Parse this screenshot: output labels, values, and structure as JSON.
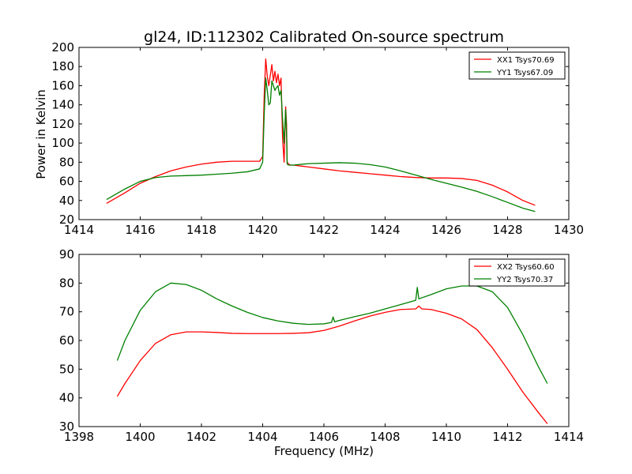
{
  "figure": {
    "title": "gl24, ID:112302 Calibrated On-source spectrum",
    "ylabel": "Power in Kelvin",
    "xlabel": "Frequency (MHz)"
  },
  "chart_data": [
    {
      "type": "line",
      "title": "gl24, ID:112302 Calibrated On-source spectrum",
      "ylabel": "Power in Kelvin",
      "xlabel": "",
      "xlim": [
        1414,
        1430
      ],
      "ylim": [
        20,
        200
      ],
      "xticks": [
        1414,
        1416,
        1418,
        1420,
        1422,
        1424,
        1426,
        1428,
        1430
      ],
      "yticks": [
        20,
        40,
        60,
        80,
        100,
        120,
        140,
        160,
        180,
        200
      ],
      "legend_position": "top-right",
      "series": [
        {
          "name": "XX1 Tsys70.69",
          "color": "#ff0000",
          "x": [
            1414.9,
            1415.5,
            1416.0,
            1416.5,
            1417.0,
            1417.5,
            1418.0,
            1418.5,
            1419.0,
            1419.5,
            1419.9,
            1420.0,
            1420.05,
            1420.1,
            1420.15,
            1420.2,
            1420.3,
            1420.35,
            1420.4,
            1420.45,
            1420.5,
            1420.55,
            1420.6,
            1420.65,
            1420.7,
            1420.75,
            1420.78,
            1420.8,
            1420.85,
            1420.9,
            1421.0,
            1421.5,
            1422.0,
            1422.5,
            1423.0,
            1423.5,
            1424.0,
            1424.5,
            1425.0,
            1425.5,
            1426.0,
            1426.5,
            1427.0,
            1427.5,
            1428.0,
            1428.5,
            1428.9
          ],
          "y": [
            37,
            48,
            58,
            65,
            71,
            75,
            78,
            80,
            81,
            81,
            81,
            86,
            150,
            188,
            170,
            160,
            182,
            165,
            175,
            163,
            172,
            160,
            168,
            105,
            80,
            138,
            120,
            80,
            78,
            77,
            77,
            75,
            73,
            71,
            69.5,
            68,
            66.5,
            65,
            64,
            63.5,
            63.5,
            63,
            61,
            56,
            49,
            40,
            35
          ]
        },
        {
          "name": "YY1 Tsys67.09",
          "color": "#008000",
          "x": [
            1414.9,
            1415.5,
            1416.0,
            1416.5,
            1417.0,
            1417.5,
            1418.0,
            1418.5,
            1419.0,
            1419.5,
            1419.9,
            1420.0,
            1420.05,
            1420.1,
            1420.15,
            1420.2,
            1420.25,
            1420.3,
            1420.35,
            1420.4,
            1420.45,
            1420.5,
            1420.55,
            1420.6,
            1420.65,
            1420.7,
            1420.75,
            1420.78,
            1420.8,
            1420.85,
            1420.9,
            1421.0,
            1421.5,
            1422.0,
            1422.5,
            1423.0,
            1423.5,
            1424.0,
            1424.5,
            1425.0,
            1425.5,
            1426.0,
            1426.5,
            1427.0,
            1427.5,
            1428.0,
            1428.5,
            1428.9
          ],
          "y": [
            41,
            52,
            60,
            64,
            65.5,
            66,
            66.5,
            67.5,
            68.5,
            70,
            73,
            80,
            130,
            168,
            155,
            140,
            142,
            165,
            160,
            155,
            158,
            160,
            150,
            155,
            125,
            100,
            135,
            110,
            78,
            77,
            77,
            77,
            78.5,
            79,
            79.5,
            79,
            77.5,
            75,
            71,
            66.5,
            62,
            58,
            54,
            49.5,
            44,
            38,
            32,
            28.5
          ]
        }
      ]
    },
    {
      "type": "line",
      "title": "",
      "ylabel": "",
      "xlabel": "Frequency (MHz)",
      "xlim": [
        1398,
        1414
      ],
      "ylim": [
        30,
        90
      ],
      "xticks": [
        1398,
        1400,
        1402,
        1404,
        1406,
        1408,
        1410,
        1412,
        1414
      ],
      "yticks": [
        30,
        40,
        50,
        60,
        70,
        80,
        90
      ],
      "legend_position": "top-right",
      "series": [
        {
          "name": "XX2 Tsys60.60",
          "color": "#ff0000",
          "x": [
            1399.25,
            1399.5,
            1400.0,
            1400.5,
            1401.0,
            1401.5,
            1402.0,
            1402.5,
            1403.0,
            1403.5,
            1404.0,
            1404.5,
            1405.0,
            1405.5,
            1406.0,
            1406.5,
            1407.0,
            1407.5,
            1408.0,
            1408.5,
            1409.0,
            1409.1,
            1409.2,
            1409.5,
            1410.0,
            1410.5,
            1411.0,
            1411.5,
            1412.0,
            1412.5,
            1413.0,
            1413.3
          ],
          "y": [
            40.5,
            45,
            53,
            59,
            62,
            63,
            63,
            62.8,
            62.5,
            62.4,
            62.4,
            62.4,
            62.5,
            62.7,
            63.5,
            65,
            66.8,
            68.5,
            69.8,
            70.8,
            71,
            72,
            71,
            70.8,
            69.5,
            67.5,
            63.8,
            57.5,
            50,
            42,
            35,
            31
          ]
        },
        {
          "name": "YY2 Tsys70.37",
          "color": "#008000",
          "x": [
            1399.25,
            1399.5,
            1400.0,
            1400.5,
            1401.0,
            1401.5,
            1402.0,
            1402.5,
            1403.0,
            1403.5,
            1404.0,
            1404.5,
            1405.0,
            1405.5,
            1406.0,
            1406.25,
            1406.3,
            1406.35,
            1406.5,
            1407.0,
            1407.5,
            1408.0,
            1408.5,
            1409.0,
            1409.05,
            1409.1,
            1409.5,
            1410.0,
            1410.5,
            1411.0,
            1411.5,
            1412.0,
            1412.5,
            1413.0,
            1413.3
          ],
          "y": [
            53,
            60,
            70.5,
            77,
            80,
            79.5,
            77.5,
            74.5,
            72,
            69.8,
            68,
            66.8,
            66,
            65.6,
            65.8,
            66.3,
            68.2,
            66.5,
            67,
            68.3,
            69.5,
            71,
            72.5,
            74,
            78.5,
            74.5,
            76,
            78,
            79,
            79,
            77,
            71.5,
            62,
            51,
            45
          ]
        }
      ]
    }
  ]
}
